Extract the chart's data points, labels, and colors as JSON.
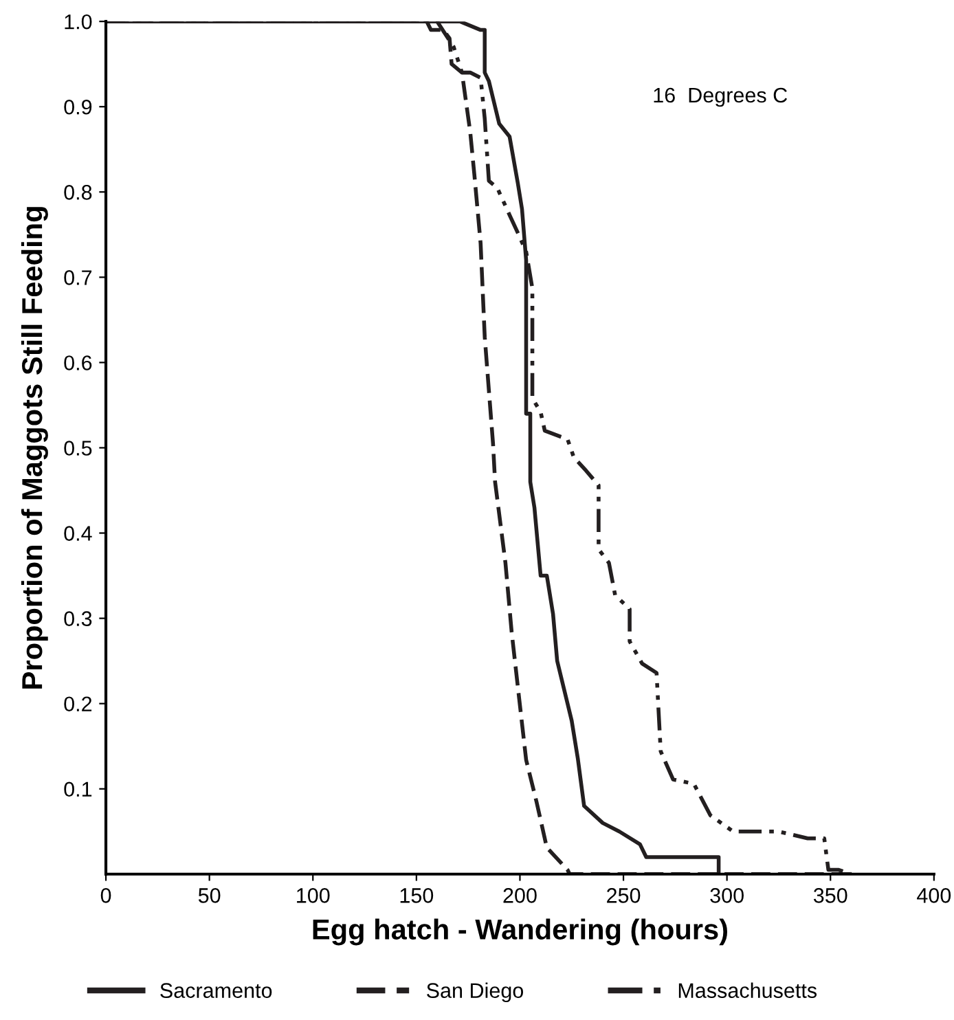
{
  "chart_data": {
    "type": "line",
    "xlabel": "Egg hatch - Wandering (hours)",
    "ylabel": "Proportion of Maggots Still Feeding",
    "annotations": [
      "16  Degrees C"
    ],
    "xlim": [
      0,
      400
    ],
    "xticks": [
      0,
      50,
      100,
      150,
      200,
      250,
      300,
      350,
      400
    ],
    "ylim": [
      0,
      1
    ],
    "yticks": [
      {
        "value": 0.1,
        "label": "0.1"
      },
      {
        "value": 0.2,
        "label": "0.2"
      },
      {
        "value": 0.3,
        "label": "0.3"
      },
      {
        "value": 0.4,
        "label": "0.4"
      },
      {
        "value": 0.5,
        "label": "0.5"
      },
      {
        "value": 0.6,
        "label": "0.6"
      },
      {
        "value": 0.7,
        "label": "0.7"
      },
      {
        "value": 0.8,
        "label": "0.8"
      },
      {
        "value": 0.9,
        "label": "0.9"
      },
      {
        "value": 1,
        "label": "1.0"
      }
    ],
    "grid": false,
    "legend": "bottom",
    "marker": "none",
    "series": [
      {
        "name": "Sacramento",
        "color": "#231f20",
        "line_style": "solid",
        "x": [
          0,
          171,
          181,
          183,
          183,
          185,
          187,
          190,
          195,
          199,
          201,
          203,
          203,
          205,
          205,
          207,
          210,
          213,
          216,
          218,
          223,
          225,
          228,
          231,
          240,
          248,
          258,
          261,
          296,
          296
        ],
        "values": [
          1,
          1,
          0.99,
          0.99,
          0.94,
          0.93,
          0.91,
          0.88,
          0.865,
          0.81,
          0.78,
          0.72,
          0.54,
          0.54,
          0.46,
          0.43,
          0.35,
          0.35,
          0.305,
          0.25,
          0.2,
          0.18,
          0.135,
          0.08,
          0.06,
          0.05,
          0.035,
          0.02,
          0.02,
          0
        ]
      },
      {
        "name": "San Diego",
        "color": "#231f20",
        "line_style": "dashed",
        "x": [
          0,
          155,
          157,
          163,
          166,
          167,
          172,
          176,
          178,
          181,
          183,
          187,
          188,
          193,
          196,
          200,
          203,
          208,
          213,
          215,
          223,
          224,
          360
        ],
        "values": [
          1,
          1,
          0.99,
          0.99,
          0.98,
          0.95,
          0.94,
          0.87,
          0.82,
          0.74,
          0.63,
          0.505,
          0.46,
          0.365,
          0.284,
          0.198,
          0.134,
          0.085,
          0.031,
          0.026,
          0.005,
          0,
          0
        ]
      },
      {
        "name": "Massachusetts",
        "color": "#231f20",
        "line_style": "dashdot",
        "x": [
          0,
          160,
          168,
          172,
          176,
          181,
          183,
          185,
          189,
          195,
          199,
          203,
          206,
          206,
          210,
          212,
          223,
          226,
          232,
          238,
          238,
          243,
          246,
          253,
          253,
          259,
          266,
          268,
          274,
          284,
          292,
          303,
          325,
          339,
          347,
          349,
          354,
          360
        ],
        "values": [
          1,
          1,
          0.97,
          0.94,
          0.94,
          0.934,
          0.886,
          0.813,
          0.805,
          0.773,
          0.752,
          0.73,
          0.687,
          0.558,
          0.542,
          0.52,
          0.51,
          0.489,
          0.473,
          0.456,
          0.381,
          0.365,
          0.327,
          0.311,
          0.273,
          0.247,
          0.236,
          0.144,
          0.111,
          0.106,
          0.069,
          0.05,
          0.05,
          0.042,
          0.042,
          0.005,
          0.005,
          0
        ]
      }
    ]
  }
}
